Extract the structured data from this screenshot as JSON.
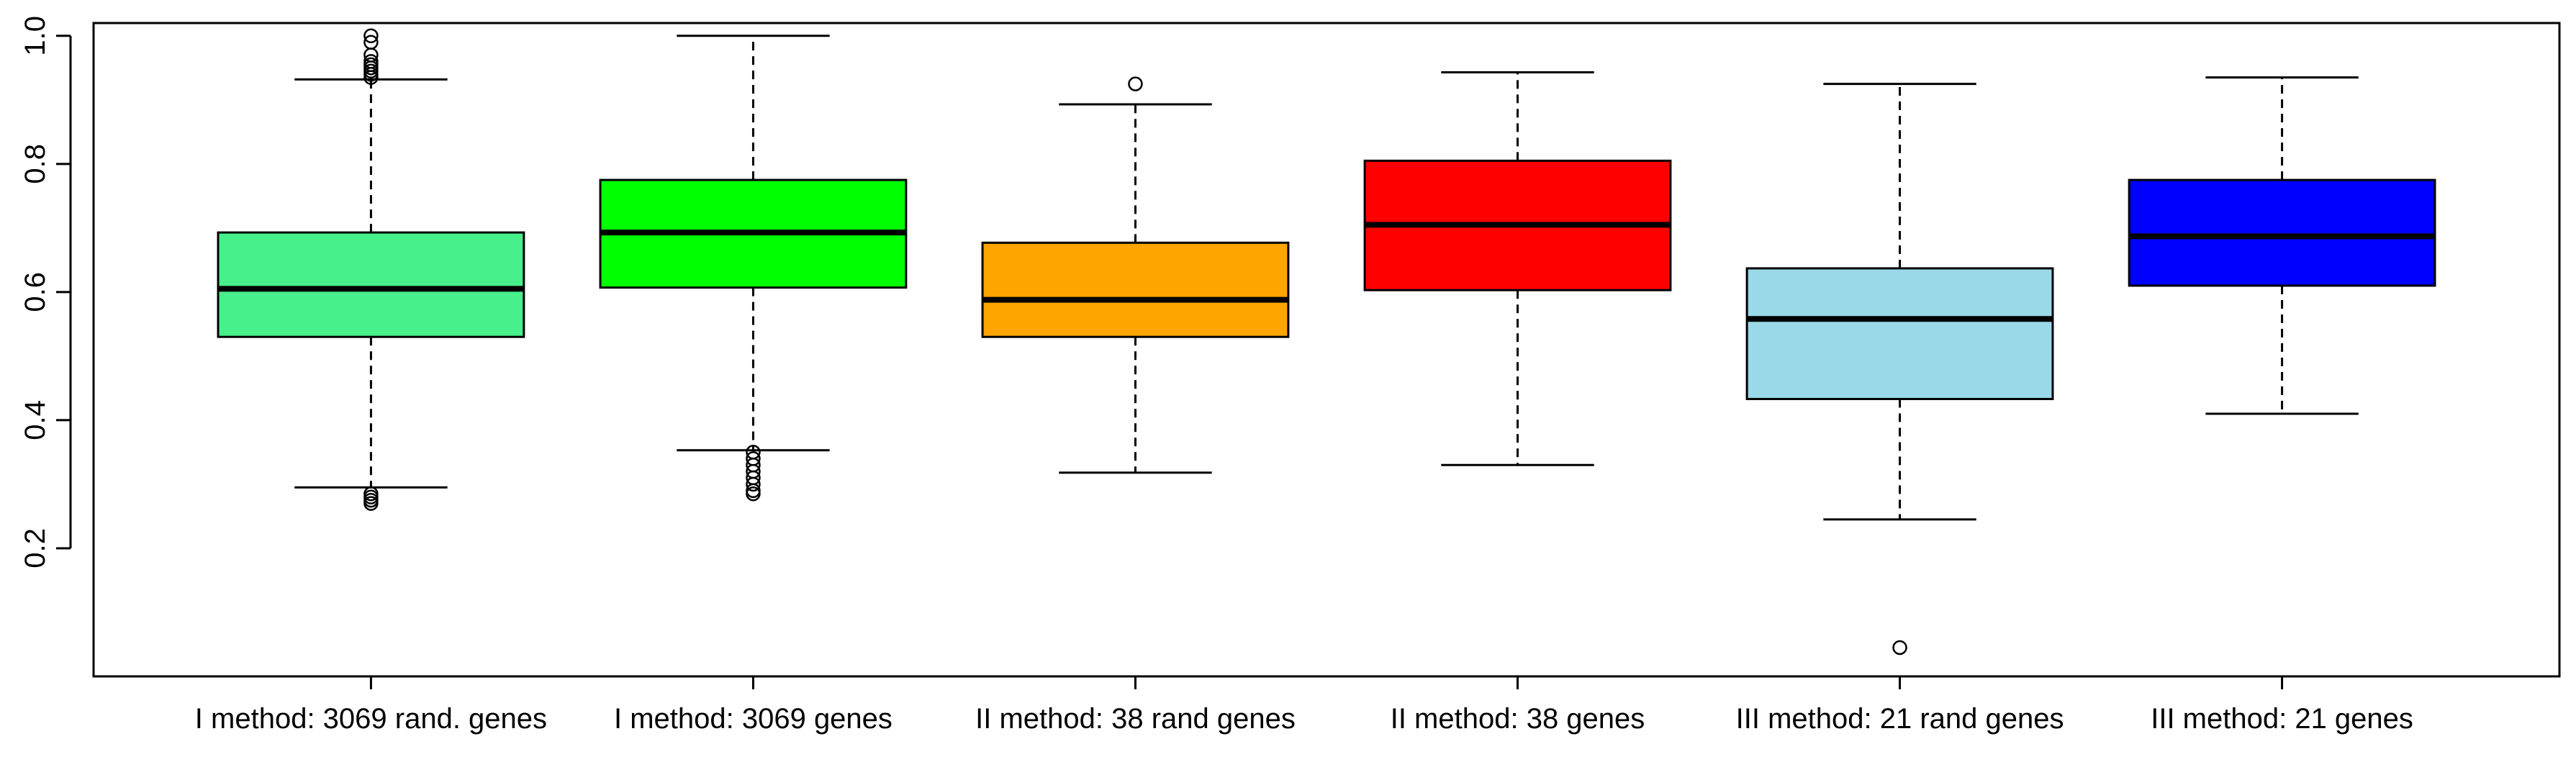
{
  "chart_data": {
    "type": "box",
    "y_range": [
      0.0,
      1.02
    ],
    "y_ticks": [
      0.2,
      0.4,
      0.6,
      0.8,
      1.0
    ],
    "y_tick_labels": [
      "0.2",
      "0.4",
      "0.6",
      "0.8",
      "1.0"
    ],
    "grid": false,
    "categories": [
      "I method: 3069 rand. genes",
      "I method: 3069 genes",
      "II method: 38 rand genes",
      "II method: 38 genes",
      "III method: 21 rand genes",
      "III method: 21 genes"
    ],
    "boxes": [
      {
        "color": "#48F08C",
        "whisker_low": 0.295,
        "q1": 0.53,
        "median": 0.605,
        "q3": 0.693,
        "whisker_high": 0.932,
        "outliers": [
          0.27,
          0.275,
          0.28,
          0.285,
          0.935,
          0.94,
          0.945,
          0.95,
          0.955,
          0.96,
          0.97,
          0.99,
          1.0
        ]
      },
      {
        "color": "#00FF00",
        "whisker_low": 0.353,
        "q1": 0.607,
        "median": 0.693,
        "q3": 0.775,
        "whisker_high": 1.0,
        "outliers": [
          0.285,
          0.29,
          0.3,
          0.31,
          0.32,
          0.33,
          0.34,
          0.35
        ]
      },
      {
        "color": "#FFA500",
        "whisker_low": 0.318,
        "q1": 0.53,
        "median": 0.588,
        "q3": 0.677,
        "whisker_high": 0.893,
        "outliers": [
          0.925
        ]
      },
      {
        "color": "#FF0000",
        "whisker_low": 0.33,
        "q1": 0.603,
        "median": 0.705,
        "q3": 0.805,
        "whisker_high": 0.943,
        "outliers": []
      },
      {
        "color": "#9AD9E8",
        "whisker_low": 0.245,
        "q1": 0.433,
        "median": 0.558,
        "q3": 0.637,
        "whisker_high": 0.925,
        "outliers": [
          0.045
        ]
      },
      {
        "color": "#0000FF",
        "whisker_low": 0.41,
        "q1": 0.61,
        "median": 0.687,
        "q3": 0.775,
        "whisker_high": 0.935,
        "outliers": []
      }
    ]
  }
}
